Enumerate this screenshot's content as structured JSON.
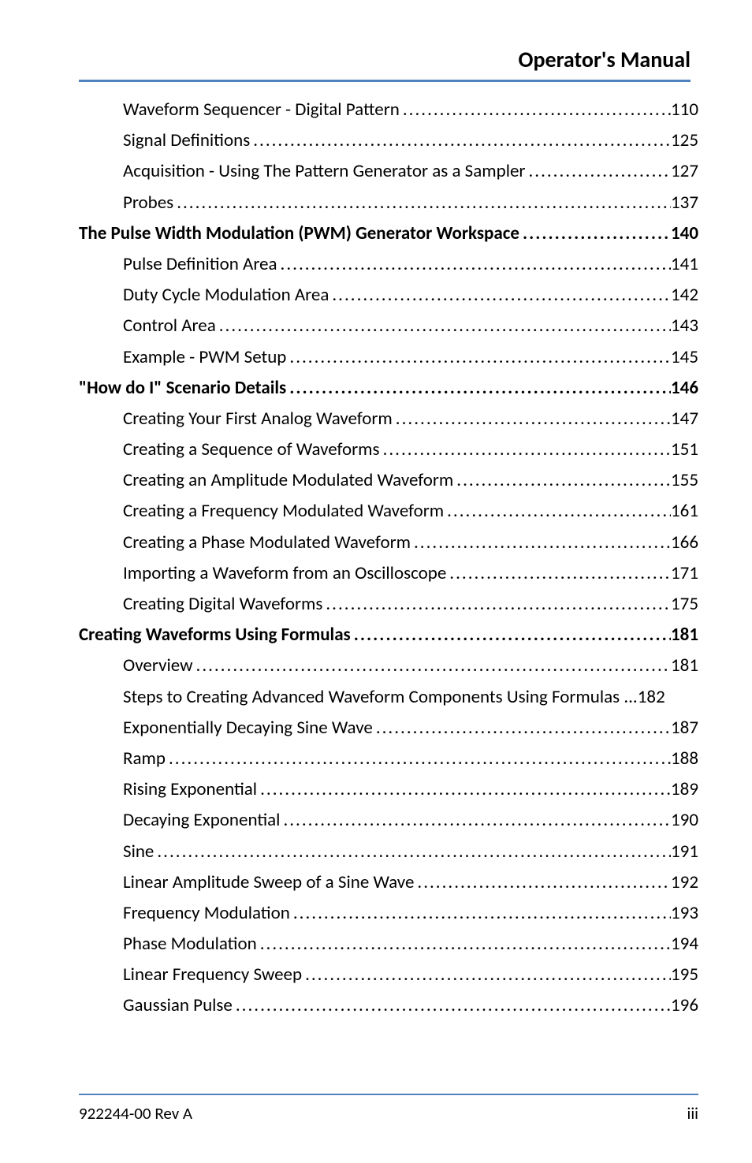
{
  "header": {
    "title": "Operator's Manual",
    "rule_color": "#4f81bd"
  },
  "toc": {
    "font_size": 23,
    "entries": [
      {
        "label": "Waveform Sequencer - Digital Pattern",
        "page": "110",
        "level": 1,
        "space_before_leader": false
      },
      {
        "label": "Signal Definitions",
        "page": "125",
        "level": 1,
        "space_before_leader": true
      },
      {
        "label": "Acquisition - Using The Pattern Generator as a Sampler",
        "page": "127",
        "level": 1,
        "space_before_leader": true
      },
      {
        "label": "Probes",
        "page": "137",
        "level": 1,
        "space_before_leader": true
      },
      {
        "label": "The Pulse Width Modulation (PWM) Generator Workspace",
        "page": "140",
        "level": 0,
        "space_before_leader": true
      },
      {
        "label": "Pulse Definition Area",
        "page": "141",
        "level": 1,
        "space_before_leader": true
      },
      {
        "label": "Duty Cycle Modulation Area",
        "page": "142",
        "level": 1,
        "space_before_leader": false
      },
      {
        "label": "Control Area",
        "page": "143",
        "level": 1,
        "space_before_leader": false
      },
      {
        "label": "Example - PWM Setup",
        "page": "145",
        "level": 1,
        "space_before_leader": true
      },
      {
        "label": "\"How do I\" Scenario Details",
        "page": "146",
        "level": 0,
        "space_before_leader": true
      },
      {
        "label": "Creating Your First Analog Waveform",
        "page": "147",
        "level": 1,
        "space_before_leader": true
      },
      {
        "label": "Creating a Sequence of Waveforms",
        "page": "151",
        "level": 1,
        "space_before_leader": true
      },
      {
        "label": "Creating an Amplitude Modulated Waveform",
        "page": "155",
        "level": 1,
        "space_before_leader": true
      },
      {
        "label": "Creating a Frequency Modulated Waveform",
        "page": "161",
        "level": 1,
        "space_before_leader": true
      },
      {
        "label": "Creating a Phase Modulated Waveform",
        "page": "166",
        "level": 1,
        "space_before_leader": true
      },
      {
        "label": "Importing a Waveform from an Oscilloscope",
        "page": "171",
        "level": 1,
        "space_before_leader": false
      },
      {
        "label": "Creating Digital Waveforms",
        "page": "175",
        "level": 1,
        "space_before_leader": false
      },
      {
        "label": "Creating Waveforms Using Formulas",
        "page": "181",
        "level": 0,
        "space_before_leader": true
      },
      {
        "label": "Overview",
        "page": "181",
        "level": 1,
        "space_before_leader": false
      },
      {
        "label": "Steps to Creating Advanced Waveform Components Using Formulas",
        "page": "182",
        "level": 1,
        "space_before_leader": true
      },
      {
        "label": "Exponentially Decaying Sine Wave",
        "page": "187",
        "level": 1,
        "space_before_leader": true
      },
      {
        "label": "Ramp",
        "page": "188",
        "level": 1,
        "space_before_leader": false
      },
      {
        "label": "Rising Exponential",
        "page": "189",
        "level": 1,
        "space_before_leader": false
      },
      {
        "label": "Decaying Exponential",
        "page": "190",
        "level": 1,
        "space_before_leader": true
      },
      {
        "label": "Sine",
        "page": "191",
        "level": 1,
        "space_before_leader": true
      },
      {
        "label": "Linear Amplitude Sweep of a Sine Wave",
        "page": "192",
        "level": 1,
        "space_before_leader": false
      },
      {
        "label": "Frequency Modulation",
        "page": "193",
        "level": 1,
        "space_before_leader": true
      },
      {
        "label": "Phase Modulation",
        "page": "194",
        "level": 1,
        "space_before_leader": false
      },
      {
        "label": "Linear Frequency Sweep",
        "page": "195",
        "level": 1,
        "space_before_leader": false
      },
      {
        "label": "Gaussian Pulse",
        "page": "196",
        "level": 1,
        "space_before_leader": true
      }
    ]
  },
  "footer": {
    "left": "922244-00 Rev A",
    "right": "iii",
    "rule_color": "#4f81bd"
  },
  "colors": {
    "rule": "#4f81bd",
    "text": "#000000",
    "background": "#ffffff"
  }
}
